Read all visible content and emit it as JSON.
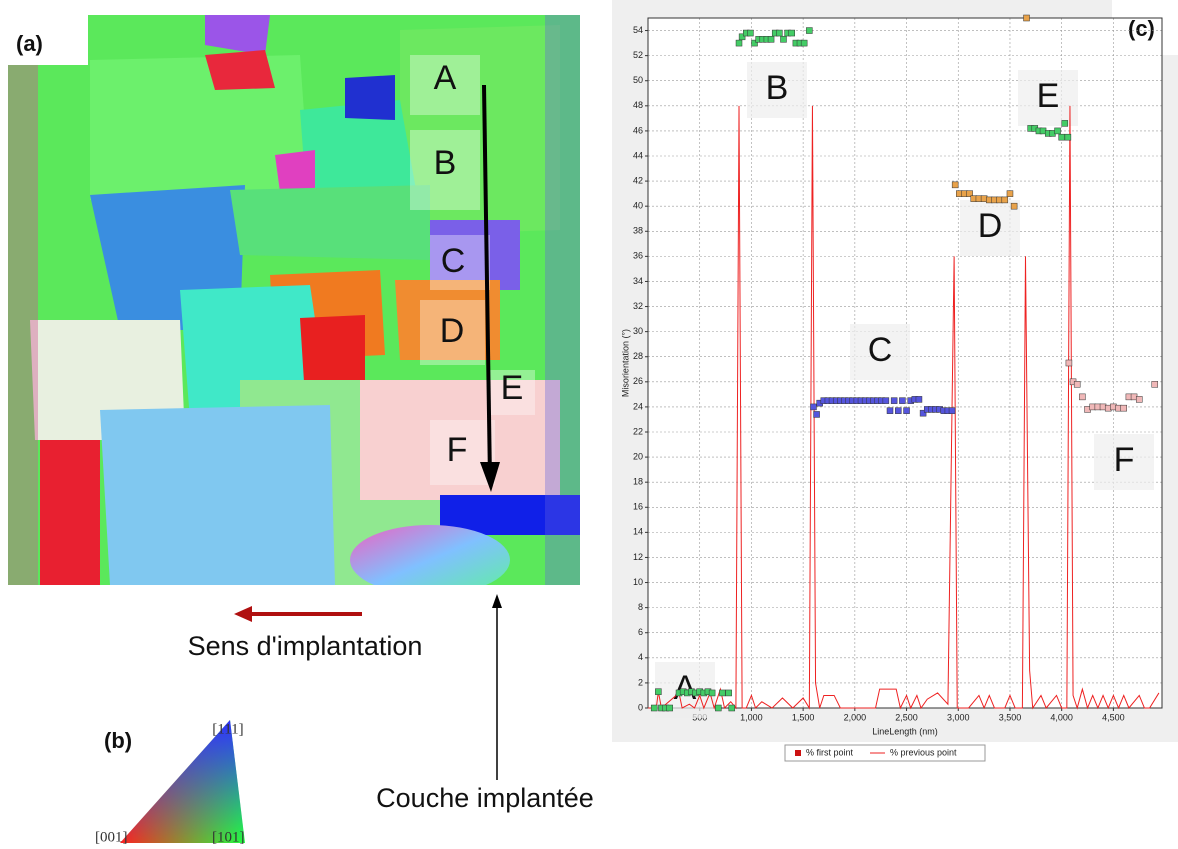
{
  "map": {
    "label": "(a)",
    "regions": [
      "A",
      "B",
      "C",
      "D",
      "E",
      "F"
    ],
    "arrow_label": "Sens d'implantation",
    "layer_label": "Couche implantée"
  },
  "key": {
    "label": "(b)",
    "corners": [
      "[111]",
      "[001]",
      "[101]"
    ]
  },
  "chart_data": {
    "type": "scatter",
    "panel_label": "(c)",
    "x_label": "LineLength (nm)",
    "y_label": "Misorientation (°)",
    "xlim": [
      0,
      4970
    ],
    "ylim": [
      0,
      55
    ],
    "xticks": [
      500,
      {
        "value": 1000,
        "label": "1,000"
      },
      {
        "value": 1500,
        "label": "1,500"
      },
      {
        "value": 2000,
        "label": "2,000"
      },
      {
        "value": 2500,
        "label": "2,500"
      },
      {
        "value": 3000,
        "label": "3,000"
      },
      {
        "value": 3500,
        "label": "3,500"
      },
      {
        "value": 4000,
        "label": "4,000"
      },
      {
        "value": 4500,
        "label": "4,500"
      }
    ],
    "yticks": [
      0,
      2,
      4,
      6,
      8,
      10,
      12,
      14,
      16,
      18,
      20,
      22,
      24,
      26,
      28,
      30,
      32,
      34,
      36,
      38,
      40,
      42,
      44,
      46,
      48,
      50,
      52,
      54
    ],
    "grid": true,
    "legend": "bottom",
    "annotations": [
      "A",
      "B",
      "C",
      "D",
      "E",
      "F"
    ],
    "series": [
      {
        "name": "% first point",
        "color": "#cc1111",
        "x": [
          60,
          100,
          130,
          170,
          210,
          300,
          340,
          380,
          420,
          460,
          500,
          540,
          580,
          620,
          680,
          720,
          780,
          810,
          880,
          910,
          950,
          990,
          1030,
          1070,
          1110,
          1150,
          1190,
          1230,
          1270,
          1310,
          1350,
          1390,
          1430,
          1470,
          1510,
          1560,
          1600,
          1630,
          1660,
          1700,
          1740,
          1780,
          1820,
          1860,
          1900,
          1940,
          1980,
          2020,
          2060,
          2100,
          2140,
          2180,
          2220,
          2260,
          2300,
          2340,
          2380,
          2420,
          2460,
          2500,
          2540,
          2580,
          2620,
          2660,
          2700,
          2740,
          2780,
          2820,
          2860,
          2900,
          2940,
          2970,
          3010,
          3060,
          3110,
          3150,
          3200,
          3250,
          3300,
          3350,
          3400,
          3450,
          3500,
          3540,
          3660,
          3700,
          3740,
          3780,
          3820,
          3870,
          3910,
          3960,
          4000,
          4030,
          4060,
          4070,
          4110,
          4150,
          4200,
          4250,
          4300,
          4350,
          4400,
          4450,
          4500,
          4550,
          4600,
          4650,
          4700,
          4750,
          4900
        ],
        "values": [
          0,
          1.3,
          0,
          0,
          0,
          1.2,
          1.3,
          1.2,
          1.3,
          1.2,
          1.3,
          1.2,
          1.3,
          1.2,
          0,
          1.2,
          1.2,
          0,
          53,
          53.5,
          53.8,
          53.8,
          53,
          53.3,
          53.3,
          53.3,
          53.3,
          53.8,
          53.8,
          53.3,
          53.8,
          53.8,
          53,
          53,
          53,
          54,
          24,
          23.4,
          24.3,
          24.5,
          24.5,
          24.5,
          24.5,
          24.5,
          24.5,
          24.5,
          24.5,
          24.5,
          24.5,
          24.5,
          24.5,
          24.5,
          24.5,
          24.5,
          24.5,
          23.7,
          24.5,
          23.7,
          24.5,
          23.7,
          24.5,
          24.6,
          24.6,
          23.5,
          23.8,
          23.8,
          23.8,
          23.8,
          23.7,
          23.7,
          23.7,
          41.7,
          41,
          41,
          41,
          40.6,
          40.6,
          40.6,
          40.5,
          40.5,
          40.5,
          40.5,
          41,
          40,
          55,
          46.2,
          46.2,
          46,
          46,
          45.8,
          45.8,
          46,
          45.5,
          46.6,
          45.5,
          27.5,
          26,
          25.8,
          24.8,
          23.8,
          24,
          24,
          24,
          23.9,
          24,
          23.9,
          23.9,
          24.8,
          24.8,
          24.6,
          25.8
        ],
        "marker_colors": [
          "#44cc66",
          "#44cc66",
          "#44cc66",
          "#44cc66",
          "#44cc66",
          "#44cc66",
          "#44cc66",
          "#44cc66",
          "#44cc66",
          "#44cc66",
          "#44cc66",
          "#44cc66",
          "#44cc66",
          "#44cc66",
          "#44cc66",
          "#44cc66",
          "#44cc66",
          "#44cc66",
          "#44cc66",
          "#44cc66",
          "#44cc66",
          "#44cc66",
          "#44cc66",
          "#44cc66",
          "#44cc66",
          "#44cc66",
          "#44cc66",
          "#44cc66",
          "#44cc66",
          "#44cc66",
          "#44cc66",
          "#44cc66",
          "#44cc66",
          "#44cc66",
          "#44cc66",
          "#44cc66",
          "#5555dd",
          "#5555dd",
          "#5555dd",
          "#5555dd",
          "#5555dd",
          "#5555dd",
          "#5555dd",
          "#5555dd",
          "#5555dd",
          "#5555dd",
          "#5555dd",
          "#5555dd",
          "#5555dd",
          "#5555dd",
          "#5555dd",
          "#5555dd",
          "#5555dd",
          "#5555dd",
          "#5555dd",
          "#5555dd",
          "#5555dd",
          "#5555dd",
          "#5555dd",
          "#5555dd",
          "#5555dd",
          "#5555dd",
          "#5555dd",
          "#5555dd",
          "#5555dd",
          "#5555dd",
          "#5555dd",
          "#5555dd",
          "#5555dd",
          "#5555dd",
          "#5555dd",
          "#e8a24a",
          "#e8a24a",
          "#e8a24a",
          "#e8a24a",
          "#e8a24a",
          "#e8a24a",
          "#e8a24a",
          "#e8a24a",
          "#e8a24a",
          "#e8a24a",
          "#e8a24a",
          "#e8a24a",
          "#e8a24a",
          "#e8a24a",
          "#44cc66",
          "#44cc66",
          "#44cc66",
          "#44cc66",
          "#44cc66",
          "#44cc66",
          "#44cc66",
          "#44cc66",
          "#44cc66",
          "#44cc66",
          "#f0b8b8",
          "#f0b8b8",
          "#f0b8b8",
          "#f0b8b8",
          "#f0b8b8",
          "#f0b8b8",
          "#f0b8b8",
          "#f0b8b8",
          "#f0b8b8",
          "#f0b8b8",
          "#f0b8b8",
          "#f0b8b8",
          "#f0b8b8",
          "#f0b8b8",
          "#f0b8b8",
          "#f0b8b8"
        ]
      },
      {
        "name": "% previous point",
        "color": "#ee2222",
        "x": [
          0,
          80,
          100,
          130,
          300,
          330,
          400,
          450,
          500,
          540,
          600,
          640,
          700,
          740,
          800,
          850,
          880,
          910,
          950,
          1000,
          1040,
          1100,
          1200,
          1300,
          1400,
          1500,
          1560,
          1590,
          1620,
          1660,
          1700,
          1800,
          1860,
          2200,
          2240,
          2400,
          2440,
          2500,
          2540,
          2600,
          2640,
          2700,
          2800,
          2900,
          2960,
          2990,
          3100,
          3200,
          3250,
          3300,
          3350,
          3450,
          3500,
          3550,
          3620,
          3650,
          3690,
          3720,
          3800,
          3850,
          3950,
          4000,
          4050,
          4080,
          4110,
          4150,
          4200,
          4250,
          4300,
          4350,
          4400,
          4450,
          4500,
          4550,
          4600,
          4650,
          4750,
          4800,
          4850,
          4940
        ],
        "values": [
          0,
          0,
          1.3,
          0,
          1.2,
          0,
          0.3,
          0,
          1,
          0,
          1.2,
          0,
          1.5,
          0,
          0.5,
          0,
          48,
          0,
          0,
          1,
          0,
          0.5,
          0,
          0.8,
          0,
          0.8,
          0,
          48,
          2,
          0,
          1,
          1,
          0,
          0,
          1.5,
          1.5,
          0,
          1,
          0,
          1,
          0,
          0.7,
          1.2,
          0.3,
          36,
          0,
          0,
          1,
          0,
          1,
          0,
          0,
          1,
          0,
          0,
          36,
          3,
          0,
          1,
          0,
          1,
          0,
          0,
          48,
          1,
          0,
          1.5,
          0,
          1,
          0,
          1,
          0,
          1,
          0,
          1,
          0,
          1,
          0,
          0,
          1.2
        ]
      }
    ]
  }
}
